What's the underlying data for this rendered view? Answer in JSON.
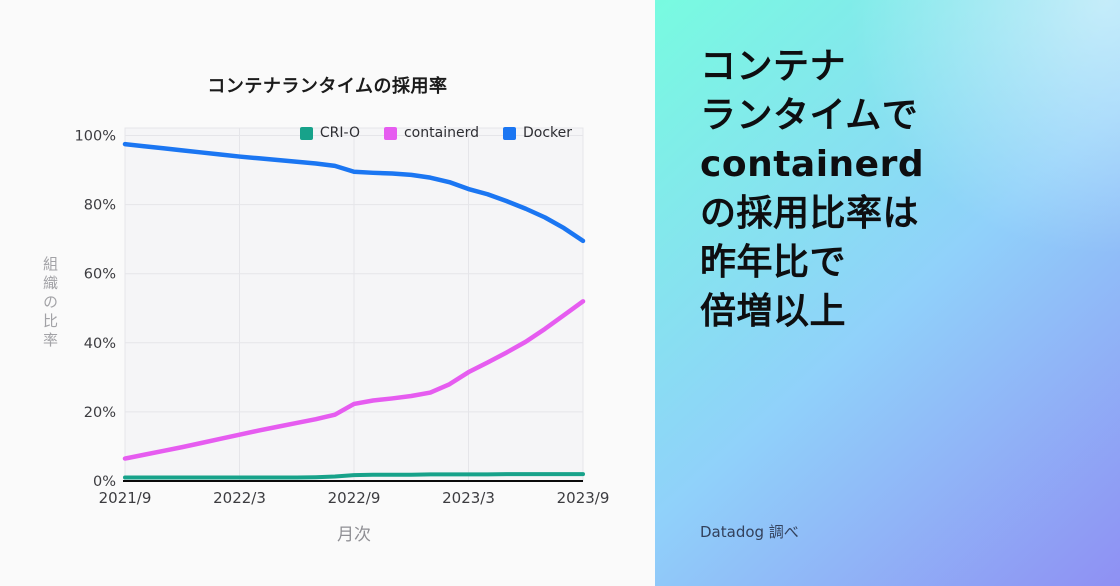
{
  "chart_data": {
    "type": "line",
    "title": "コンテナランタイムの採用率",
    "xlabel": "月次",
    "ylabel": "組織の比率",
    "ylim": [
      0,
      100
    ],
    "grid": true,
    "legend_position": "top-right-inside",
    "points_per_series": 25,
    "x_tick_labels": [
      "2021/9",
      "2022/3",
      "2022/9",
      "2023/3",
      "2023/9"
    ],
    "x_tick_indices": [
      0,
      6,
      12,
      18,
      24
    ],
    "y_ticks": [
      0,
      20,
      40,
      60,
      80,
      100
    ],
    "y_tick_suffix": "%",
    "series": [
      {
        "name": "CRI-O",
        "color": "#17a28a",
        "values": [
          1.0,
          1.0,
          1.0,
          1.0,
          1.0,
          1.0,
          1.0,
          1.0,
          1.0,
          1.0,
          1.1,
          1.3,
          1.7,
          1.8,
          1.8,
          1.8,
          1.9,
          1.9,
          1.9,
          1.9,
          2.0,
          2.0,
          2.0,
          2.0,
          2.0
        ]
      },
      {
        "name": "containerd",
        "color": "#e65cf0",
        "values": [
          6.5,
          7.6,
          8.7,
          9.8,
          11.0,
          12.2,
          13.4,
          14.6,
          15.7,
          16.8,
          17.9,
          19.2,
          22.3,
          23.3,
          23.9,
          24.6,
          25.6,
          28.0,
          31.5,
          34.3,
          37.2,
          40.3,
          44.0,
          48.0,
          52.0
        ]
      },
      {
        "name": "Docker",
        "color": "#1b76f2",
        "values": [
          97.5,
          96.9,
          96.3,
          95.7,
          95.1,
          94.5,
          93.9,
          93.4,
          92.9,
          92.4,
          91.9,
          91.2,
          89.5,
          89.2,
          89.0,
          88.6,
          87.8,
          86.5,
          84.5,
          83.0,
          81.0,
          78.8,
          76.3,
          73.2,
          69.5
        ]
      }
    ]
  },
  "right_panel": {
    "headline_lines": [
      "コンテナ",
      "ランタイムで",
      "containerd",
      "の採用比率は",
      "昨年比で",
      "倍増以上"
    ],
    "source": "Datadog 調べ",
    "gradient": {
      "top_left": "#78fbe0",
      "mid": "#90d1fa",
      "bottom_right": "#8f90f3"
    },
    "headline_color": "#0e0e10"
  },
  "style_colors": {
    "left_background": "#fafafa",
    "plot_background": "#f5f5f7",
    "gridline": "#e5e5e9",
    "axis_line": "#0a0a0a",
    "tick_text": "#3c3c40",
    "axis_title_text": "#a2a2a6"
  }
}
